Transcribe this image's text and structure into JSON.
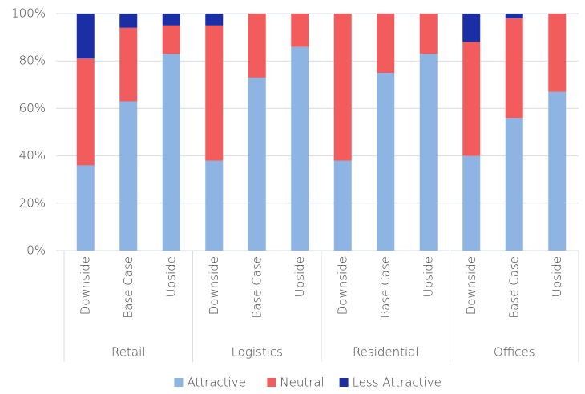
{
  "chart_data": {
    "type": "stacked_bar",
    "categories": [
      "Downside",
      "Base Case",
      "Upside",
      "Downside",
      "Base Case",
      "Upside",
      "Downside",
      "Base Case",
      "Upside",
      "Downside",
      "Base Case",
      "Upside"
    ],
    "groups": [
      "Retail",
      "Logistics",
      "Residential",
      "Offices"
    ],
    "series": [
      {
        "name": "Attractive",
        "color": "#8db4e2",
        "values": [
          36,
          63,
          83,
          38,
          73,
          86,
          38,
          75,
          83,
          40,
          56,
          67
        ]
      },
      {
        "name": "Neutral",
        "color": "#f25c5c",
        "values": [
          45,
          31,
          12,
          57,
          27,
          14,
          62,
          25,
          17,
          48,
          42,
          33
        ]
      },
      {
        "name": "Less Attractive",
        "color": "#1c2ea6",
        "values": [
          19,
          6,
          5,
          5,
          0,
          0,
          0,
          0,
          0,
          12,
          2,
          0
        ]
      }
    ],
    "ylim": [
      0,
      100
    ],
    "yticks": [
      {
        "value": 0,
        "label": "0%"
      },
      {
        "value": 20,
        "label": "20%"
      },
      {
        "value": 40,
        "label": "40%"
      },
      {
        "value": 60,
        "label": "60%"
      },
      {
        "value": 80,
        "label": "80%"
      },
      {
        "value": 100,
        "label": "100%"
      }
    ],
    "grid": true,
    "legend": "bottom"
  }
}
